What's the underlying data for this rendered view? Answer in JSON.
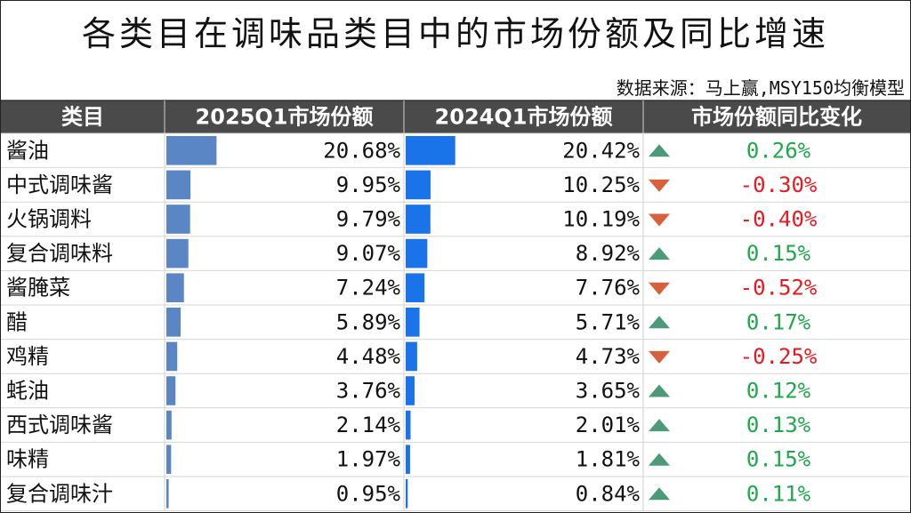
{
  "title": "各类目在调味品类目中的市场份额及同比增速",
  "source": "数据来源：马上赢,MSY150均衡模型",
  "colors": {
    "header_bg": "#4a4a4a",
    "bar_2025": "#5b86c6",
    "bar_2024": "#1a73e8",
    "up": "#4d9a78",
    "down": "#d8603c",
    "up_text": "#1fa84a",
    "down_text": "#e8191c"
  },
  "chart_data": {
    "type": "table",
    "columns": [
      "类目",
      "2025Q1市场份额",
      "2024Q1市场份额",
      "市场份额同比变化"
    ],
    "rows": [
      {
        "category": "酱油",
        "share_2025": "20.68%",
        "share_2024": "20.42%",
        "change": "0.26%",
        "direction": "up"
      },
      {
        "category": "中式调味酱",
        "share_2025": "9.95%",
        "share_2024": "10.25%",
        "change": "-0.30%",
        "direction": "down"
      },
      {
        "category": "火锅调料",
        "share_2025": "9.79%",
        "share_2024": "10.19%",
        "change": "-0.40%",
        "direction": "down"
      },
      {
        "category": "复合调味料",
        "share_2025": "9.07%",
        "share_2024": "8.92%",
        "change": "0.15%",
        "direction": "up"
      },
      {
        "category": "酱腌菜",
        "share_2025": "7.24%",
        "share_2024": "7.76%",
        "change": "-0.52%",
        "direction": "down"
      },
      {
        "category": "醋",
        "share_2025": "5.89%",
        "share_2024": "5.71%",
        "change": "0.17%",
        "direction": "up"
      },
      {
        "category": "鸡精",
        "share_2025": "4.48%",
        "share_2024": "4.73%",
        "change": "-0.25%",
        "direction": "down"
      },
      {
        "category": "蚝油",
        "share_2025": "3.76%",
        "share_2024": "3.65%",
        "change": "0.12%",
        "direction": "up"
      },
      {
        "category": "西式调味酱",
        "share_2025": "2.14%",
        "share_2024": "2.01%",
        "change": "0.13%",
        "direction": "up"
      },
      {
        "category": "味精",
        "share_2025": "1.97%",
        "share_2024": "1.81%",
        "change": "0.15%",
        "direction": "up"
      },
      {
        "category": "复合调味汁",
        "share_2025": "0.95%",
        "share_2024": "0.84%",
        "change": "0.11%",
        "direction": "up"
      }
    ]
  }
}
